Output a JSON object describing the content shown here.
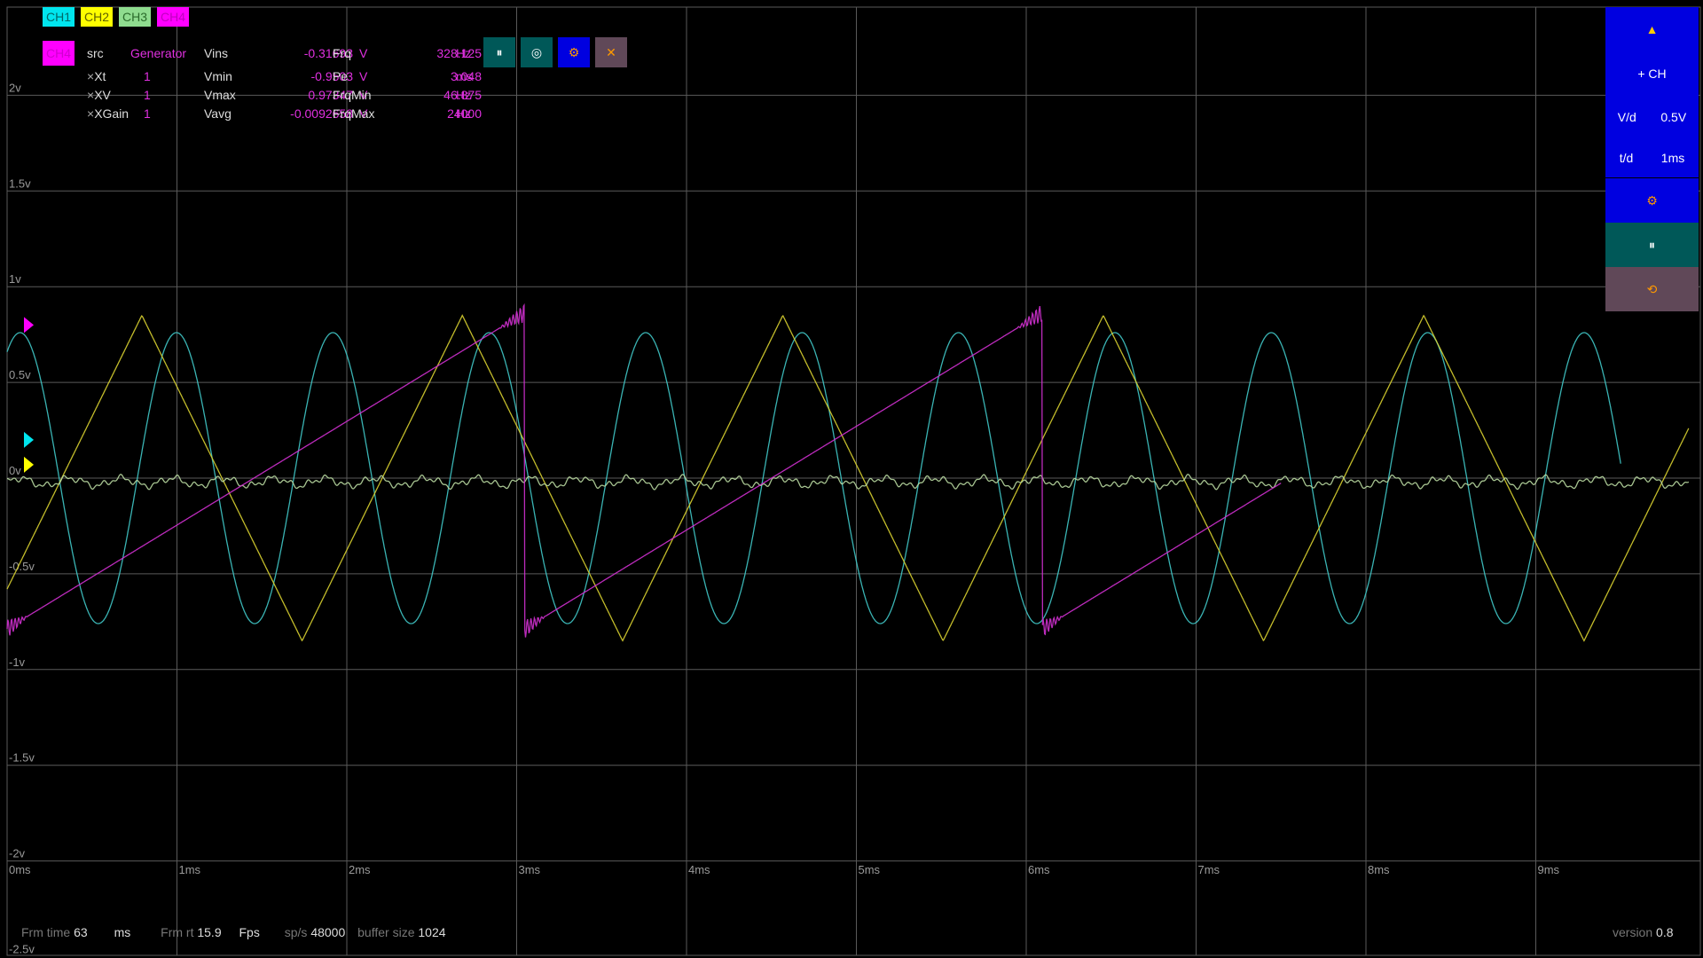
{
  "colors": {
    "ch1": "#00e5ee",
    "ch2": "#ffff00",
    "ch3": "#8fdc8f",
    "ch4": "#ff00ff",
    "ch1_trace": "#40c8c8",
    "ch2_trace": "#d8d030",
    "ch3_trace": "#b8d8a0",
    "ch4_trace": "#d030d0",
    "panel_blue": "#0000e0",
    "panel_teal": "#005858",
    "panel_mauve": "#604858",
    "accent_orange": "#ff9900"
  },
  "channel_tabs": [
    {
      "label": "CH1",
      "bg": "#00e5ee",
      "fg": "#006868"
    },
    {
      "label": "CH2",
      "bg": "#ffff00",
      "fg": "#606000"
    },
    {
      "label": "CH3",
      "bg": "#8fdc8f",
      "fg": "#2a6a2a"
    },
    {
      "label": "CH4",
      "bg": "#ff00ff",
      "fg": "#c000c0"
    }
  ],
  "measurements": {
    "selected_channel": "CH4",
    "src_label": "src",
    "src_value": "Generator",
    "xt_label": "Xt",
    "xt_value": "1",
    "xv_label": "XV",
    "xv_value": "1",
    "xgain_label": "XGain",
    "xgain_value": "1",
    "vins_label": "Vins",
    "vins_value": "-0.31693",
    "vmin_label": "Vmin",
    "vmin_value": "-0.9503",
    "vmax_label": "Vmax",
    "vmax_value": "0.97347",
    "vavg_label": "Vavg",
    "vavg_value": "-0.0092658",
    "volt_unit": "V",
    "frq_label": "Frq",
    "frq_value": "328.125",
    "pe_label": "Pe",
    "pe_value": "3.048",
    "frqmin_label": "FrqMin",
    "frqmin_value": "46.875",
    "frqmax_label": "FrqMax",
    "frqmax_value": "24000",
    "hz_unit": "Hz",
    "ms_unit": "ms"
  },
  "channel_controls": {
    "pause_icon": "pause-icon",
    "pause_glyph": "⏸",
    "target_icon": "target-icon",
    "target_glyph": "◎",
    "gear_icon": "gear-icon",
    "gear_glyph": "⚙",
    "close_icon": "close-icon",
    "close_glyph": "✕"
  },
  "right_panel": {
    "up_glyph": "▲",
    "add_channel_label": "+ CH",
    "vd_label": "V/d",
    "vd_value": "0.5V",
    "td_label": "t/d",
    "td_value": "1ms",
    "settings_glyph": "⚙",
    "pause_glyph": "⏸",
    "reset_glyph": "⟲"
  },
  "axis": {
    "y_labels": [
      "2v",
      "1.5v",
      "1v",
      "0.5v",
      "0v",
      "-0.5v",
      "-1v",
      "-1.5v",
      "-2v",
      "-2.5v"
    ],
    "x_labels": [
      "0ms",
      "1ms",
      "2ms",
      "3ms",
      "4ms",
      "5ms",
      "6ms",
      "7ms",
      "8ms",
      "9ms"
    ]
  },
  "footer": {
    "frm_time_label": "Frm time",
    "frm_time_value": "63",
    "frm_time_unit": "ms",
    "frm_rt_label": "Frm rt",
    "frm_rt_value": "15.9",
    "frm_rt_unit": "Fps",
    "sps_label": "sp/s",
    "sps_value": "48000",
    "buffer_label": "buffer size",
    "buffer_value": "1024",
    "version_label": "version",
    "version_value": "0.8"
  },
  "chart_data": {
    "type": "line",
    "xlabel": "",
    "ylabel": "",
    "x_unit": "ms",
    "y_unit": "V",
    "xlim": [
      0,
      10
    ],
    "ylim": [
      -2.5,
      2
    ],
    "grid": true,
    "series": [
      {
        "channel": "CH1",
        "waveform": "sine",
        "amplitude_v": 0.76,
        "offset_v": 0.0,
        "frequency_hz": 1086,
        "x_end_ms": 9.5
      },
      {
        "channel": "CH2",
        "waveform": "triangle",
        "amplitude_v": 0.85,
        "offset_v": 0.0,
        "frequency_hz": 530,
        "x_end_ms": 9.9
      },
      {
        "channel": "CH3",
        "waveform": "noise",
        "amplitude_v": 0.04,
        "offset_v": 0.0,
        "x_end_ms": 9.9
      },
      {
        "channel": "CH4",
        "waveform": "sawtooth",
        "amplitude_v": 0.96,
        "offset_v": 0.0,
        "frequency_hz": 328.125,
        "x_end_ms": 7.5
      }
    ],
    "trigger_markers": [
      {
        "channel": "CH4",
        "level_v": 0.8
      },
      {
        "channel": "CH1",
        "level_v": 0.2
      },
      {
        "channel": "CH2",
        "level_v": 0.07
      }
    ]
  }
}
